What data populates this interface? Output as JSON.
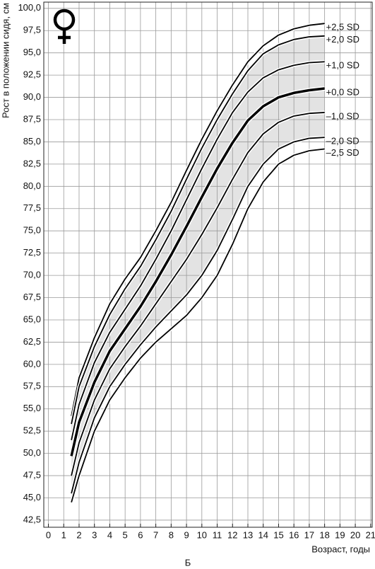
{
  "chart_data": {
    "type": "line",
    "ylabel": "Рост в положении сидя, см",
    "xlabel": "Возраст, годы",
    "caption": "Б",
    "x": [
      1.5,
      2,
      3,
      4,
      5,
      6,
      7,
      8,
      9,
      10,
      11,
      12,
      13,
      14,
      15,
      16,
      17,
      18
    ],
    "series": [
      {
        "name": "+2,5 SD",
        "color": "#000000",
        "line_width": 1.8,
        "values": [
          54.2,
          58.5,
          63,
          66.8,
          69.6,
          72,
          75,
          78.2,
          81.8,
          85.3,
          88.5,
          91.4,
          94,
          95.8,
          97,
          97.7,
          98.1,
          98.3
        ]
      },
      {
        "name": "+2,0 SD",
        "color": "#000000",
        "line_width": 1.8,
        "values": [
          53.3,
          57.5,
          62,
          65.6,
          68.5,
          71,
          74,
          77.2,
          80.8,
          84.3,
          87.5,
          90.4,
          93,
          94.9,
          95.9,
          96.5,
          96.8,
          96.9
        ]
      },
      {
        "name": "+1,0 SD",
        "color": "#000000",
        "line_width": 1.8,
        "values": [
          51.5,
          55.5,
          60.2,
          63.6,
          66.2,
          68.8,
          71.8,
          75,
          78.5,
          82,
          85.3,
          88.3,
          90.6,
          92.2,
          93.1,
          93.6,
          93.9,
          94
        ]
      },
      {
        "name": "+0,0 SD",
        "color": "#000000",
        "line_width": 3.5,
        "values": [
          49.7,
          53.5,
          58,
          61.5,
          64,
          66.5,
          69.3,
          72.3,
          75.5,
          78.8,
          82,
          84.9,
          87.4,
          89,
          90,
          90.5,
          90.8,
          91
        ]
      },
      {
        "name": "–1,0 SD",
        "color": "#000000",
        "line_width": 1.8,
        "values": [
          47.5,
          51.2,
          56,
          59.5,
          62,
          64.3,
          66.8,
          69.3,
          71.8,
          74.6,
          77.6,
          80.8,
          83.8,
          85.9,
          87.2,
          87.9,
          88.2,
          88.3
        ]
      },
      {
        "name": "–2,0 SD",
        "color": "#000000",
        "line_width": 1.8,
        "values": [
          45.5,
          49,
          54,
          57.5,
          60,
          62.2,
          64.2,
          66,
          67.8,
          70,
          72.8,
          76.3,
          80,
          82.5,
          84.2,
          85,
          85.4,
          85.5
        ]
      },
      {
        "name": "–2,5 SD",
        "color": "#000000",
        "line_width": 1.8,
        "values": [
          44.5,
          47.5,
          52.5,
          56,
          58.5,
          60.7,
          62.5,
          64,
          65.5,
          67.5,
          70,
          73.5,
          77.5,
          80.5,
          82.5,
          83.5,
          84,
          84.2
        ]
      }
    ],
    "band_color": "#e3e3e3",
    "xlim": [
      -0.3,
      21.1
    ],
    "ylim": [
      41.7,
      100.7
    ],
    "xticks": [
      0,
      1,
      2,
      3,
      4,
      5,
      6,
      7,
      8,
      9,
      10,
      11,
      12,
      13,
      14,
      15,
      16,
      17,
      18,
      19,
      20,
      21
    ],
    "yticks": [
      {
        "value": 42.5,
        "label": "42,5"
      },
      {
        "value": 45,
        "label": "45,0"
      },
      {
        "value": 47.5,
        "label": "47,5"
      },
      {
        "value": 50,
        "label": "50,0"
      },
      {
        "value": 52.5,
        "label": "52,5"
      },
      {
        "value": 55,
        "label": "55,0"
      },
      {
        "value": 57.5,
        "label": "57,5"
      },
      {
        "value": 60,
        "label": "60,0"
      },
      {
        "value": 62.5,
        "label": "62,5"
      },
      {
        "value": 65,
        "label": "65,0"
      },
      {
        "value": 67.5,
        "label": "67,5"
      },
      {
        "value": 70,
        "label": "70,0"
      },
      {
        "value": 72.5,
        "label": "72,5"
      },
      {
        "value": 75,
        "label": "75,0"
      },
      {
        "value": 77.5,
        "label": "77,5"
      },
      {
        "value": 80,
        "label": "80,0"
      },
      {
        "value": 82.5,
        "label": "82,5"
      },
      {
        "value": 85,
        "label": "85,0"
      },
      {
        "value": 87.5,
        "label": "87,5"
      },
      {
        "value": 90,
        "label": "90,0"
      },
      {
        "value": 92.5,
        "label": "92,5"
      },
      {
        "value": 95,
        "label": "95,0"
      },
      {
        "value": 97.5,
        "label": "97,5"
      },
      {
        "value": 100,
        "label": "100,0"
      }
    ],
    "grid": true
  }
}
